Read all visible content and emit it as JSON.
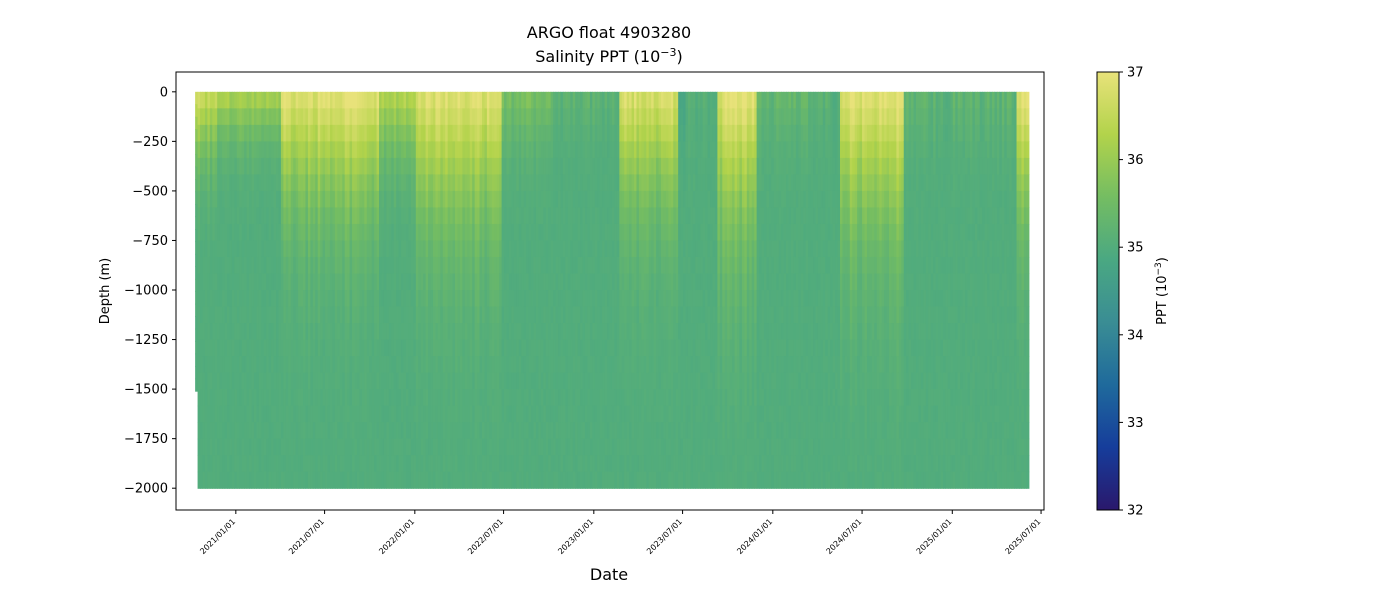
{
  "chart_data": {
    "type": "scatter",
    "title": "ARGO float 4903280",
    "subtitle_prefix": "Salinity PPT (10",
    "subtitle_exp": "−3",
    "subtitle_suffix": ")",
    "xlabel": "Date",
    "ylabel": "Depth (m)",
    "xlim": [
      "2020-09-01",
      "2025-07-07"
    ],
    "ylim": [
      -2110,
      100
    ],
    "x_ticks": [
      "2021/01/01",
      "2021/07/01",
      "2022/01/01",
      "2022/07/01",
      "2023/01/01",
      "2023/07/01",
      "2024/01/01",
      "2024/07/01",
      "2025/01/01",
      "2025/07/01"
    ],
    "y_ticks": [
      0,
      -250,
      -500,
      -750,
      -1000,
      -1250,
      -1500,
      -1750,
      -2000
    ],
    "y_tick_labels": [
      "0",
      "−250",
      "−500",
      "−750",
      "−1000",
      "−1250",
      "−1500",
      "−1750",
      "−2000"
    ],
    "data_range": {
      "start": "2020-10-10",
      "end": "2025-06-01",
      "min_depth": 0,
      "max_depth": -2000,
      "first_profile_max_depth": -1510
    },
    "colorbar": {
      "label_prefix": "PPT (10",
      "label_exp": "−3",
      "label_suffix": ")",
      "min": 32,
      "max": 37,
      "ticks": [
        32,
        33,
        34,
        35,
        36,
        37
      ],
      "colormap": [
        "#2a186c",
        "#163d9b",
        "#1f6a9c",
        "#3a8d94",
        "#4aa882",
        "#74bd62",
        "#b2d34b",
        "#e8e27a"
      ]
    },
    "salinity_sections": [
      {
        "start": "2020-10-10",
        "end": "2020-11-20",
        "surface": 36.6,
        "mixed_layer_depth": 300
      },
      {
        "start": "2020-11-20",
        "end": "2021-04-01",
        "surface": 36.2,
        "mixed_layer_depth": 220
      },
      {
        "start": "2021-04-01",
        "end": "2021-10-20",
        "surface": 36.9,
        "mixed_layer_depth": 500
      },
      {
        "start": "2021-10-20",
        "end": "2022-01-01",
        "surface": 36.3,
        "mixed_layer_depth": 300
      },
      {
        "start": "2022-01-01",
        "end": "2022-06-25",
        "surface": 36.9,
        "mixed_layer_depth": 560
      },
      {
        "start": "2022-06-25",
        "end": "2022-10-10",
        "surface": 35.6,
        "mixed_layer_depth": 250
      },
      {
        "start": "2022-10-10",
        "end": "2023-02-20",
        "surface": 35.2,
        "mixed_layer_depth": 200
      },
      {
        "start": "2023-02-20",
        "end": "2023-06-20",
        "surface": 36.8,
        "mixed_layer_depth": 500
      },
      {
        "start": "2023-06-20",
        "end": "2023-09-10",
        "surface": 35.0,
        "mixed_layer_depth": 250
      },
      {
        "start": "2023-09-10",
        "end": "2023-11-25",
        "surface": 36.9,
        "mixed_layer_depth": 600
      },
      {
        "start": "2023-11-25",
        "end": "2024-03-15",
        "surface": 35.3,
        "mixed_layer_depth": 250
      },
      {
        "start": "2024-03-15",
        "end": "2024-05-15",
        "surface": 35.1,
        "mixed_layer_depth": 200
      },
      {
        "start": "2024-05-15",
        "end": "2024-09-20",
        "surface": 36.9,
        "mixed_layer_depth": 600
      },
      {
        "start": "2024-09-20",
        "end": "2025-05-10",
        "surface": 35.2,
        "mixed_layer_depth": 250
      },
      {
        "start": "2025-05-10",
        "end": "2025-06-01",
        "surface": 36.9,
        "mixed_layer_depth": 500
      }
    ],
    "deep_salinity": 35.0
  }
}
